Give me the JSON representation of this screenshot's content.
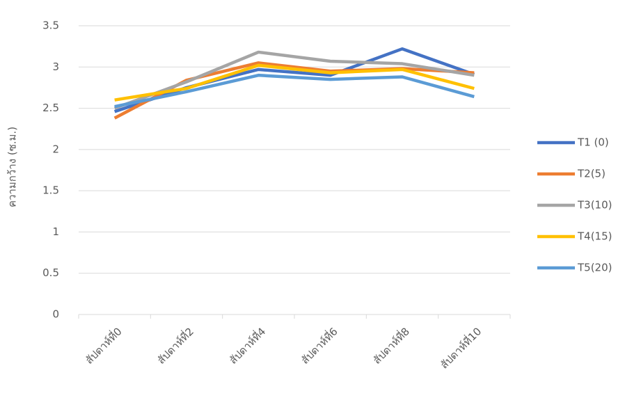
{
  "chart_data": {
    "type": "line",
    "y_label": "ความกว้าง (ซ.ม.)",
    "categories": [
      "สัปดาห์ที่0",
      "สัปดาห์ที่2",
      "สัปดาห์ที่4",
      "สัปดาห์ที่6",
      "สัปดาห์ที่8",
      "สัปดาห์ที่10"
    ],
    "series": [
      {
        "name": "T1 (0)",
        "color": "#4472c4",
        "values": [
          2.46,
          2.75,
          2.97,
          2.9,
          3.22,
          2.91
        ]
      },
      {
        "name": "T2(5)",
        "color": "#ed7d31",
        "values": [
          2.38,
          2.84,
          3.05,
          2.95,
          2.98,
          2.93
        ]
      },
      {
        "name": "T3(10)",
        "color": "#a5a5a5",
        "values": [
          2.5,
          2.82,
          3.18,
          3.07,
          3.04,
          2.9
        ]
      },
      {
        "name": "T4(15)",
        "color": "#ffc000",
        "values": [
          2.6,
          2.74,
          3.02,
          2.93,
          2.97,
          2.74
        ]
      },
      {
        "name": "T5(20)",
        "color": "#5b9bd5",
        "values": [
          2.52,
          2.7,
          2.9,
          2.85,
          2.88,
          2.64
        ]
      }
    ],
    "ylim": [
      0,
      3.5
    ],
    "yticks": [
      0,
      0.5,
      1,
      1.5,
      2,
      2.5,
      3,
      3.5
    ],
    "grid": true,
    "legend": "right"
  }
}
